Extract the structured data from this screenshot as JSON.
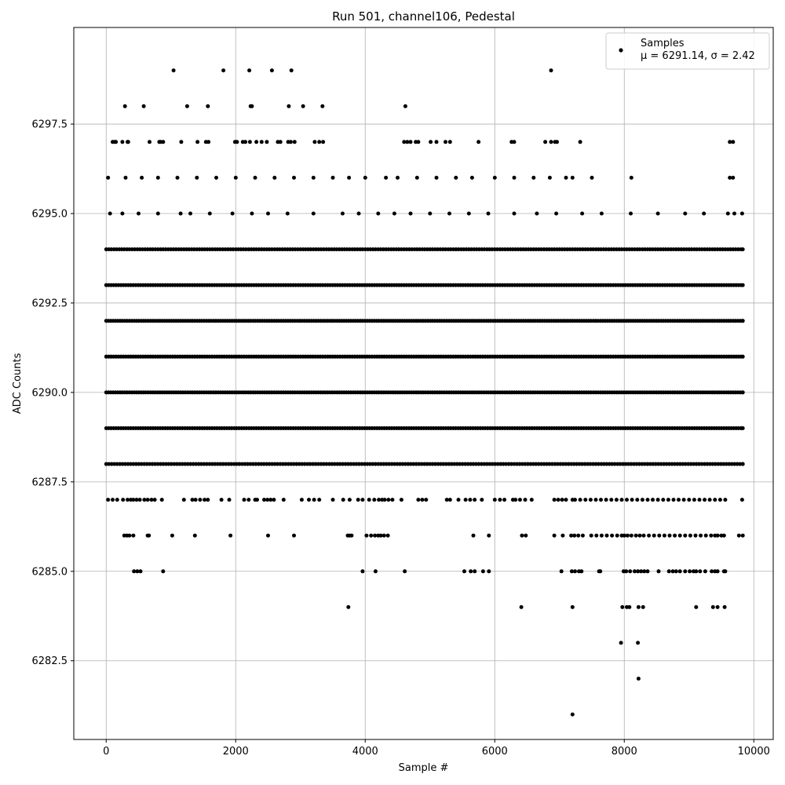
{
  "chart_data": {
    "type": "scatter",
    "title": "Run 501, channel106, Pedestal",
    "xlabel": "Sample #",
    "ylabel": "ADC Counts",
    "xlim": [
      -500,
      10300
    ],
    "ylim": [
      6280.3,
      6300.2
    ],
    "xticks": [
      0,
      2000,
      4000,
      6000,
      8000,
      10000
    ],
    "xtick_labels": [
      "0",
      "2000",
      "4000",
      "6000",
      "8000",
      "10000"
    ],
    "yticks": [
      6282.5,
      6285.0,
      6287.5,
      6290.0,
      6292.5,
      6295.0,
      6297.5
    ],
    "ytick_labels": [
      "6282.5",
      "6285.0",
      "6287.5",
      "6290.0",
      "6292.5",
      "6295.0",
      "6297.5"
    ],
    "grid": true,
    "legend_position": "top-right",
    "legend_label": "Samples",
    "legend_stats": "μ = 6291.14, σ = 2.42",
    "marker_color": "#000000",
    "grid_color": "#b0b0b0",
    "series": [
      {
        "name": "Samples",
        "bands": [
          {
            "y": 6299,
            "x": [
              1040,
              1810,
              2210,
              2560,
              2860,
              6870
            ]
          },
          {
            "y": 6298,
            "x": [
              290,
              580,
              1250,
              1570,
              2230,
              2250,
              2820,
              3040,
              3340,
              4620
            ]
          },
          {
            "y": 6297,
            "x": [
              100,
              130,
              150,
              250,
              330,
              340,
              670,
              820,
              840,
              880,
              1160,
              1410,
              1540,
              1580,
              1990,
              2020,
              2110,
              2150,
              2220,
              2320,
              2400,
              2480,
              2650,
              2690,
              2810,
              2850,
              2910,
              3220,
              3290,
              3350,
              4600,
              4650,
              4700,
              4780,
              4820,
              5010,
              5100,
              5240,
              5310,
              5750,
              6260,
              6300,
              6780,
              6870,
              6930,
              6960,
              7320,
              9630,
              9680
            ]
          },
          {
            "y": 6295,
            "x": [
              60,
              250,
              500,
              800,
              1150,
              1300,
              1600,
              1950,
              2250,
              2500,
              2800,
              3200,
              3650,
              3900,
              4200,
              4450,
              4700,
              5000,
              5300,
              5600,
              5900,
              6300,
              6650,
              6950,
              7350,
              7650,
              8100,
              8520,
              8940,
              9230,
              9600,
              9700,
              9820
            ]
          },
          {
            "y": 6296,
            "x": [
              30,
              300,
              550,
              800,
              1100,
              1400,
              1700,
              2000,
              2300,
              2600,
              2900,
              3200,
              3500,
              3750,
              4000,
              4320,
              4500,
              4800,
              5100,
              5400,
              5650,
              6000,
              6300,
              6600,
              6850,
              7100,
              7200,
              7500,
              8110,
              9630,
              9680
            ]
          },
          {
            "y": 6294,
            "x_from": 0,
            "x_to": 9830,
            "step": 40
          },
          {
            "y": 6293,
            "x_from": 0,
            "x_to": 9830,
            "step": 38
          },
          {
            "y": 6292,
            "x_from": 0,
            "x_to": 9830,
            "step": 36
          },
          {
            "y": 6291,
            "x_from": 0,
            "x_to": 9830,
            "step": 38
          },
          {
            "y": 6290,
            "x_from": 0,
            "x_to": 9830,
            "step": 36
          },
          {
            "y": 6289,
            "x_from": 0,
            "x_to": 9830,
            "step": 38
          },
          {
            "y": 6288,
            "x_from": 0,
            "x_to": 9830,
            "step": 42
          },
          {
            "y": 6287,
            "x": [
              30,
              100,
              170,
              260,
              330,
              380,
              420,
              470,
              520,
              590,
              640,
              700,
              750,
              860,
              1200,
              1330,
              1380,
              1450,
              1520,
              1570,
              1780,
              1900,
              2130,
              2200,
              2300,
              2330,
              2440,
              2490,
              2540,
              2590,
              2740,
              3020,
              3130,
              3210,
              3290,
              3500,
              3660,
              3760,
              3890,
              3960,
              4060,
              4140,
              4210,
              4260,
              4300,
              4360,
              4420,
              4560,
              4820,
              4880,
              4940,
              5260,
              5310,
              5440,
              5550,
              5620,
              5690,
              5800,
              6000,
              6080,
              6150,
              6280,
              6320,
              6390,
              6470,
              6570,
              6920,
              6980,
              7040,
              7100,
              7200,
              7240,
              7320,
              7400,
              7480,
              7560,
              7640,
              7720,
              7800,
              7880,
              7960,
              8040,
              8120,
              8200,
              8280,
              8360,
              8440,
              8520,
              8600,
              8680,
              8760,
              8840,
              8920,
              9000,
              9080,
              9160,
              9240,
              9320,
              9400,
              9480,
              9560,
              9820
            ]
          },
          {
            "y": 6286,
            "x": [
              280,
              320,
              360,
              420,
              640,
              660,
              1020,
              1370,
              1920,
              2500,
              2900,
              3730,
              3760,
              3790,
              4020,
              4090,
              4150,
              4200,
              4240,
              4290,
              4350,
              5670,
              5910,
              6420,
              6480,
              6920,
              7050,
              7180,
              7230,
              7290,
              7360,
              7490,
              7570,
              7650,
              7730,
              7810,
              7890,
              7960,
              8000,
              8050,
              8110,
              8180,
              8240,
              8300,
              8380,
              8460,
              8540,
              8620,
              8700,
              8780,
              8860,
              8940,
              9020,
              9100,
              9180,
              9260,
              9340,
              9400,
              9440,
              9500,
              9540,
              9770,
              9830
            ]
          },
          {
            "y": 6285,
            "x": [
              430,
              480,
              530,
              880,
              3960,
              4160,
              4610,
              5530,
              5630,
              5690,
              5820,
              5910,
              7030,
              7190,
              7240,
              7300,
              7340,
              7610,
              7630,
              7990,
              8030,
              8090,
              8160,
              8210,
              8260,
              8310,
              8360,
              8530,
              8690,
              8750,
              8800,
              8860,
              8940,
              9010,
              9070,
              9110,
              9170,
              9250,
              9350,
              9400,
              9440,
              9540,
              9560
            ]
          },
          {
            "y": 6284,
            "x": [
              3740,
              6410,
              7200,
              7970,
              8040,
              8080,
              8220,
              8290,
              9110,
              9370,
              9440,
              9550
            ]
          },
          {
            "y": 6283,
            "x": [
              7950,
              8210
            ]
          },
          {
            "y": 6282,
            "x": [
              8220
            ]
          },
          {
            "y": 6281,
            "x": [
              7200
            ]
          }
        ]
      }
    ]
  }
}
